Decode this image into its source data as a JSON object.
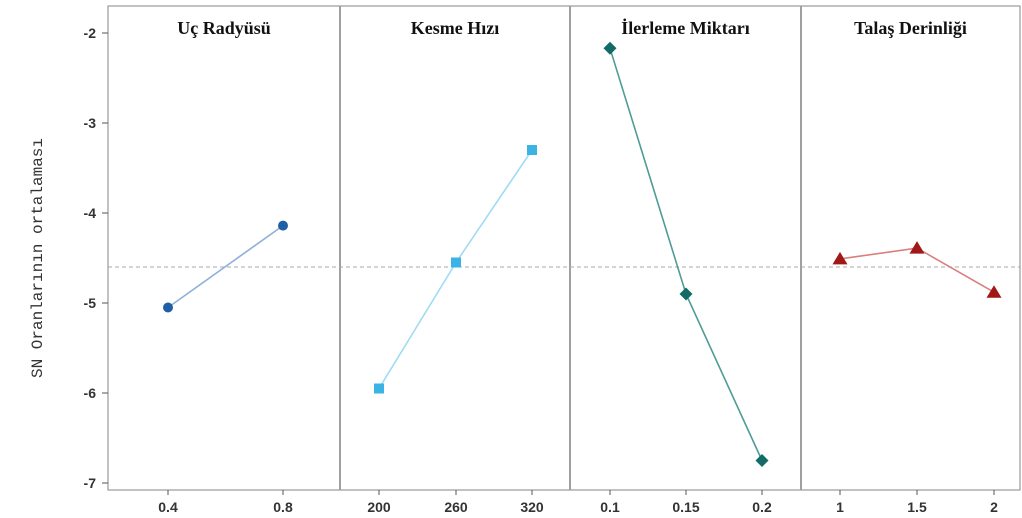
{
  "chart_data": {
    "type": "line",
    "ylabel": "SN Oranlarının ortalaması",
    "ylim": [
      -7.0,
      -1.8
    ],
    "yticks": [
      -2,
      -3,
      -4,
      -5,
      -6,
      -7
    ],
    "ytick_labels": [
      "-2",
      "-3",
      "-4",
      "-5",
      "-6",
      "-7"
    ],
    "reference_line": -4.6,
    "grid": false,
    "panels": [
      {
        "title": "Uç Radyüsü",
        "categories": [
          "0.4",
          "0.8"
        ],
        "values": [
          -5.05,
          -4.14
        ],
        "color": "#1f5fa8",
        "line_color": "#8fb0d8",
        "marker": "circle"
      },
      {
        "title": "Kesme Hızı",
        "categories": [
          "200",
          "260",
          "320"
        ],
        "values": [
          -5.95,
          -4.55,
          -3.3
        ],
        "color": "#3bb4e5",
        "line_color": "#9fdcf4",
        "marker": "square"
      },
      {
        "title": "İlerleme Miktarı",
        "categories": [
          "0.1",
          "0.15",
          "0.2"
        ],
        "values": [
          -2.17,
          -4.9,
          -6.75
        ],
        "color": "#126b66",
        "line_color": "#4f9c97",
        "marker": "diamond"
      },
      {
        "title": "Talaş Derinliği",
        "categories": [
          "1",
          "1.5",
          "2"
        ],
        "values": [
          -4.51,
          -4.39,
          -4.88
        ],
        "color": "#a01818",
        "line_color": "#d88080",
        "marker": "triangle"
      }
    ]
  }
}
